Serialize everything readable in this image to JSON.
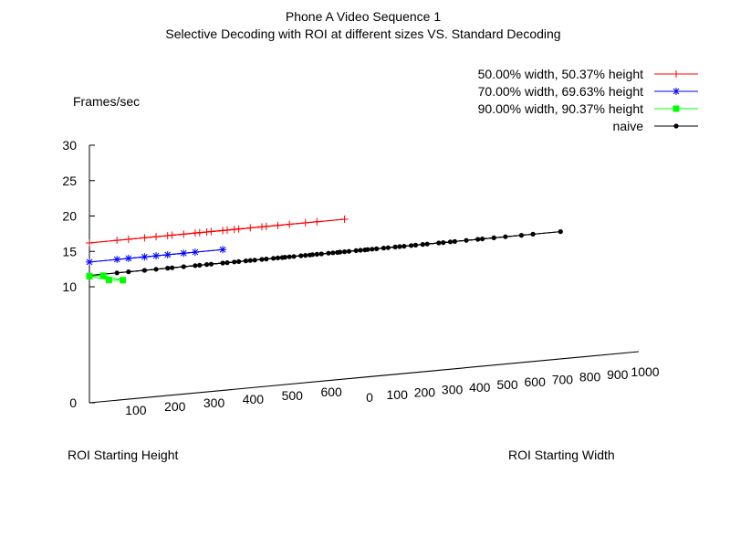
{
  "chart_data": {
    "type": "3d-surface",
    "title": "Phone A Video Sequence 1",
    "subtitle": "Selective Decoding with ROI at different sizes VS. Standard Decoding",
    "zlabel": "Frames/sec",
    "xlabel": "ROI Starting Height",
    "ylabel": "ROI Starting Width",
    "zlim": [
      0,
      30
    ],
    "z_ticks": [
      "0",
      "10",
      "15",
      "20",
      "25",
      "30"
    ],
    "x_ticks": [
      "100",
      "200",
      "300",
      "400",
      "500",
      "600"
    ],
    "y_ticks": [
      "0",
      "100",
      "200",
      "300",
      "400",
      "500",
      "600",
      "700",
      "800",
      "900",
      "1000"
    ],
    "grid": false,
    "legend_position": "top-right",
    "series": [
      {
        "name": "50.00% width, 50.37% height",
        "color": "#ff0000",
        "marker": "plus",
        "heights": [
          0,
          100,
          200,
          300
        ],
        "widths": [
          0,
          100,
          200,
          300,
          400,
          500
        ],
        "z": [
          [
            16.2,
            16.2,
            16.2,
            16.2,
            16.2,
            16.2
          ],
          [
            16.2,
            16.2,
            16.2,
            16.2,
            16.2,
            16.2
          ],
          [
            16.2,
            16.2,
            16.2,
            16.2,
            16.2,
            16.2
          ],
          [
            16.2,
            16.2,
            16.2,
            16.2,
            16.2,
            16.2
          ]
        ]
      },
      {
        "name": "70.00% width, 69.63% height",
        "color": "#0000ff",
        "marker": "star",
        "heights": [
          0,
          100,
          200
        ],
        "widths": [
          0,
          100,
          200
        ],
        "z": [
          [
            13.5,
            13.5,
            13.5
          ],
          [
            13.5,
            13.5,
            13.5
          ],
          [
            13.5,
            13.5,
            13.5
          ]
        ]
      },
      {
        "name": "90.00% width, 90.37% height",
        "color": "#00ff00",
        "marker": "square",
        "heights": [
          0,
          50
        ],
        "widths": [
          0,
          50
        ],
        "z": [
          [
            11.5,
            11.4
          ],
          [
            10.7,
            10.5
          ]
        ]
      },
      {
        "name": "naive",
        "color": "#000000",
        "marker": "circle",
        "heights": [
          0,
          100,
          200,
          300,
          400,
          500
        ],
        "widths": [
          0,
          100,
          200,
          300,
          400,
          500,
          600,
          700,
          800,
          900,
          1000
        ],
        "z": [
          [
            11.6,
            11.6,
            11.6,
            11.6,
            11.6,
            11.6,
            11.6,
            11.6,
            11.6,
            11.6,
            11.6
          ],
          [
            11.6,
            11.6,
            11.6,
            11.6,
            11.6,
            11.6,
            11.6,
            11.6,
            11.6,
            11.6,
            11.6
          ],
          [
            11.6,
            11.6,
            11.6,
            11.6,
            11.6,
            11.6,
            11.6,
            11.6,
            11.6,
            11.6,
            11.6
          ],
          [
            11.6,
            11.6,
            11.6,
            11.6,
            11.6,
            11.6,
            11.6,
            11.6,
            11.6,
            11.6,
            11.6
          ],
          [
            11.6,
            11.6,
            11.6,
            11.6,
            11.6,
            11.6,
            11.6,
            11.6,
            11.6,
            11.6,
            11.6
          ],
          [
            11.6,
            11.6,
            11.6,
            11.6,
            11.6,
            11.6,
            11.6,
            11.6,
            11.6,
            11.6,
            11.6
          ]
        ]
      }
    ]
  }
}
